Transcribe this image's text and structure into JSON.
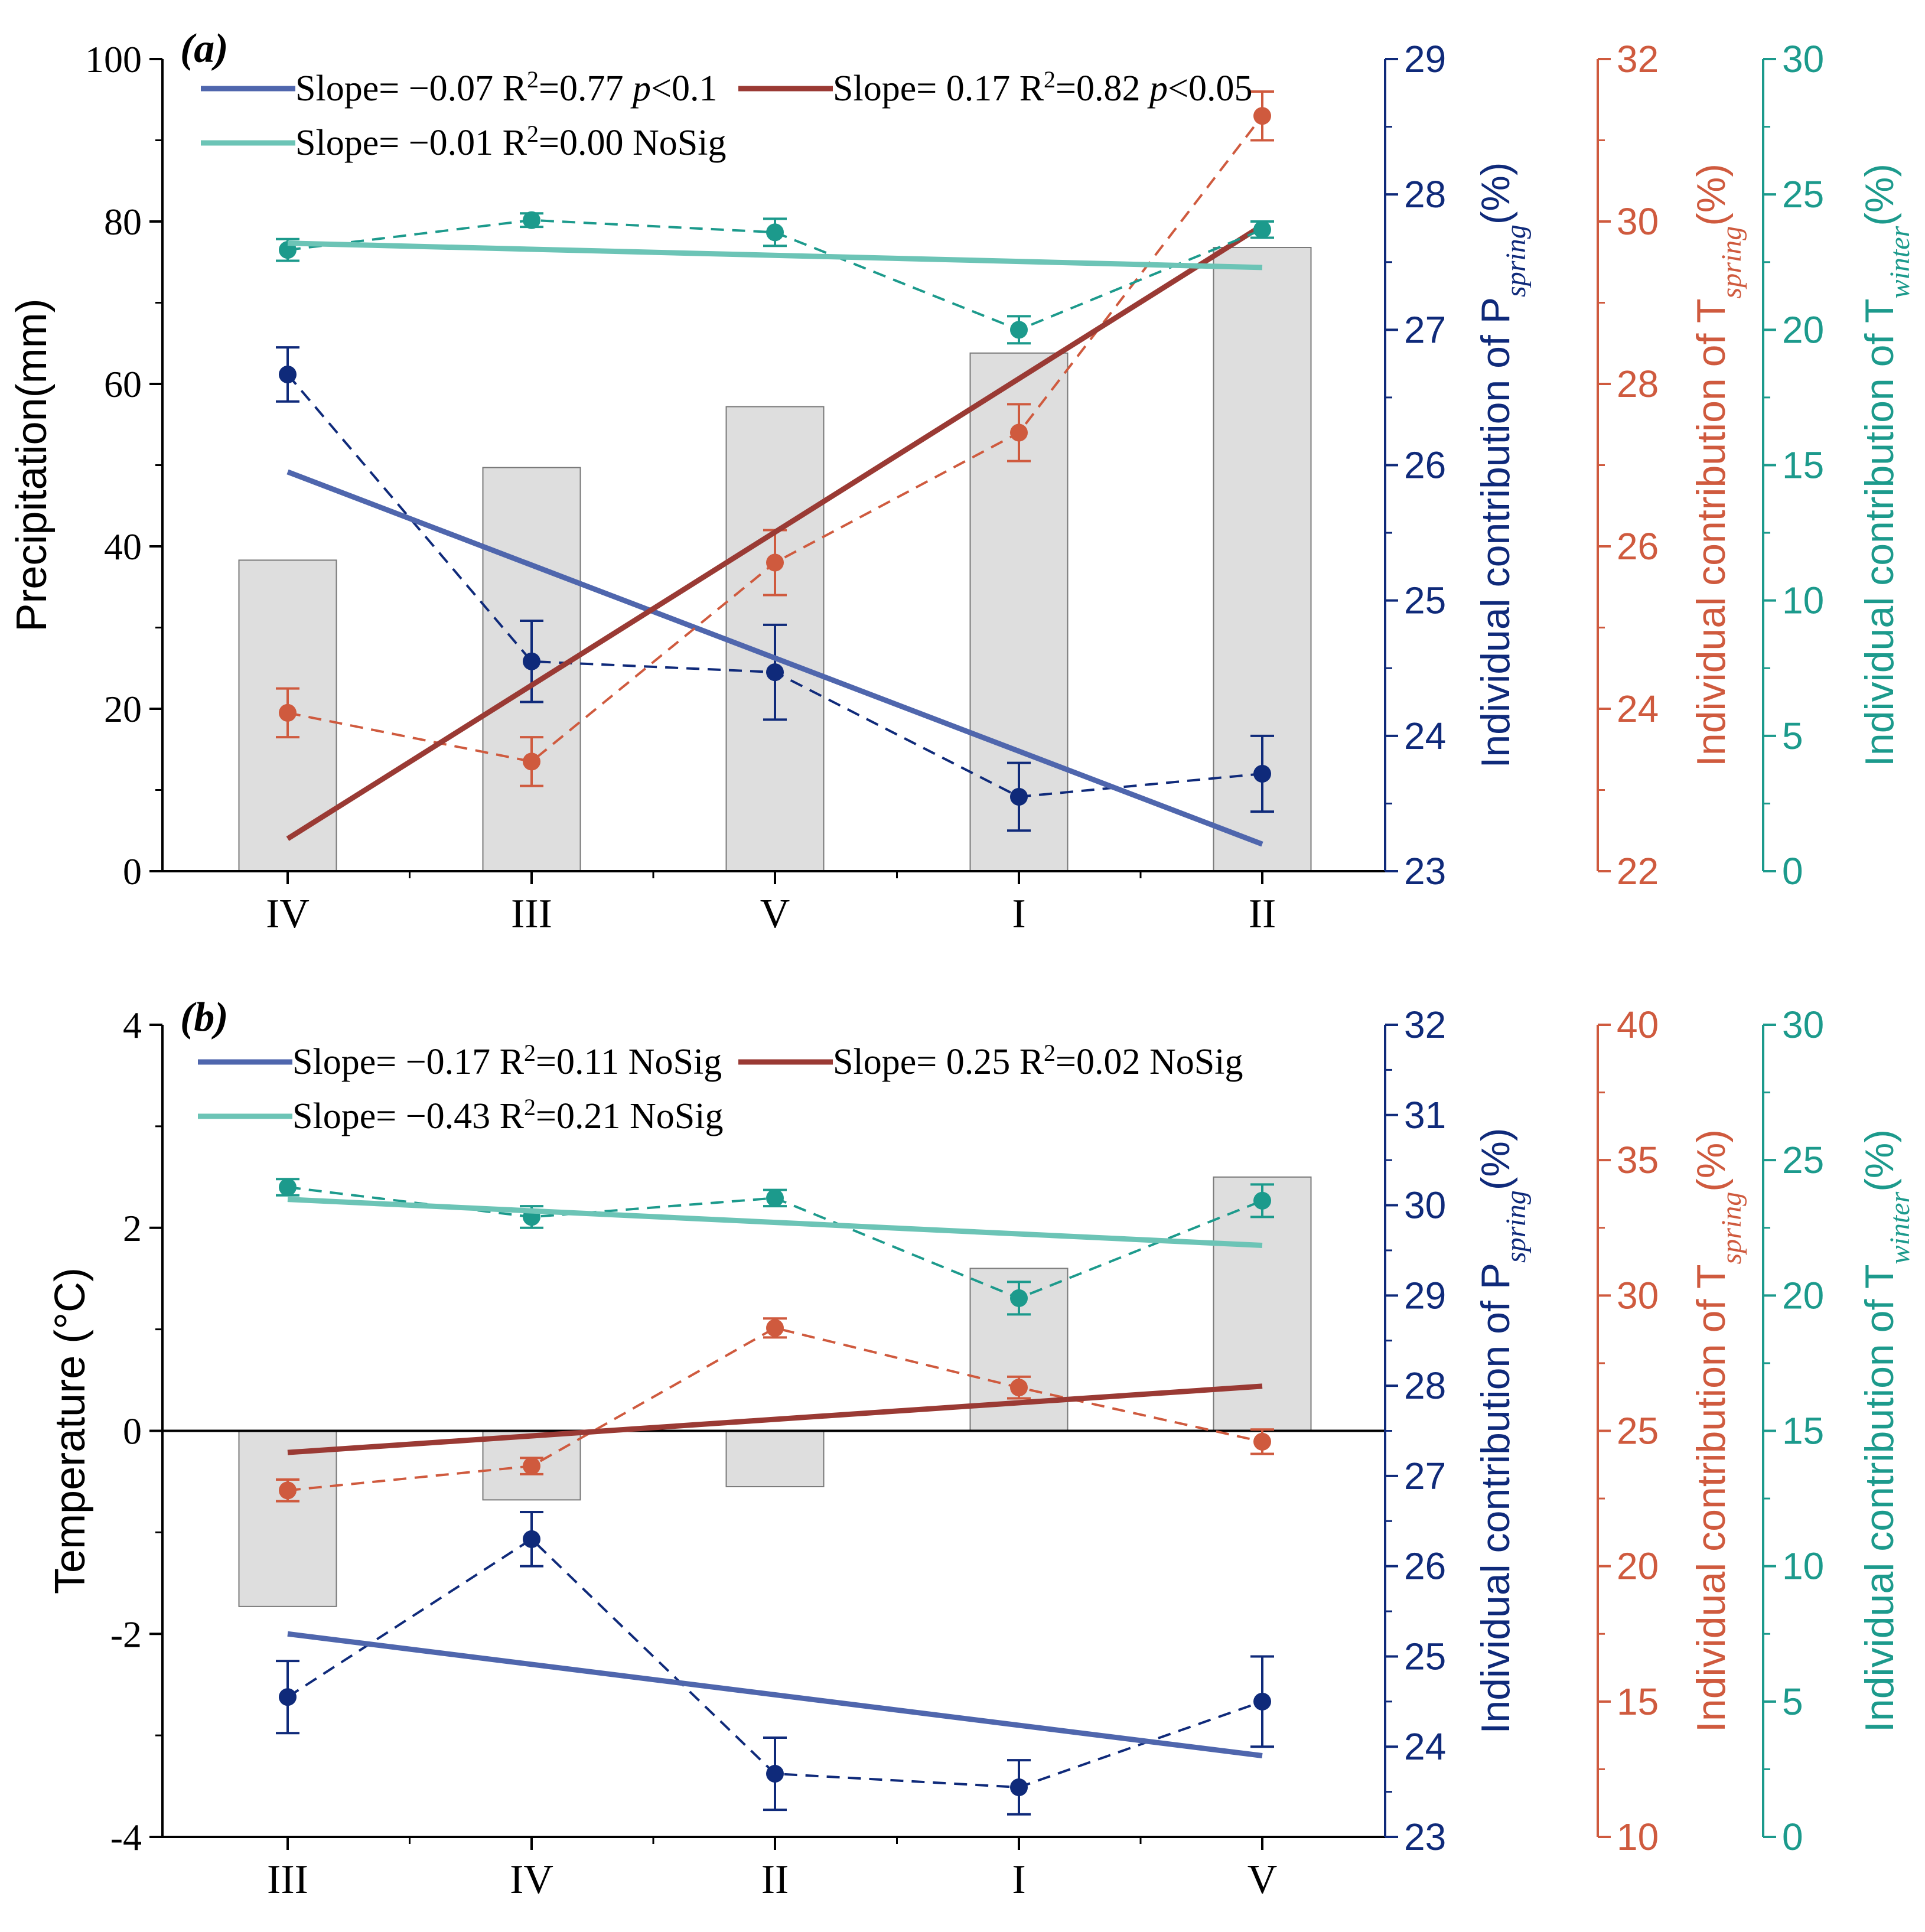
{
  "colors": {
    "blue": "#0f2a7a",
    "blue_fit": "#4f66ad",
    "red": "#cf5a3e",
    "red_fit": "#9a3a34",
    "teal": "#1c9a8c",
    "teal_fit": "#6cc4b6",
    "bar_fill": "#dedede",
    "bar_stroke": "#7a7a7a"
  },
  "chart_data": [
    {
      "id": "a",
      "type": "bar",
      "panel_label": "(a)",
      "ylabel": "Precipitation(mm)",
      "ylim": [
        0,
        100
      ],
      "yticks": [
        0,
        20,
        40,
        60,
        80,
        100
      ],
      "yticklabels": [
        "0",
        "20",
        "40",
        "60",
        "80",
        "100"
      ],
      "categories": [
        "IV",
        "III",
        "V",
        "I",
        "II"
      ],
      "bars": [
        38.3,
        49.7,
        57.2,
        63.8,
        76.8
      ],
      "zero_line": false,
      "right_axes": [
        {
          "key": "p_spring",
          "color_key": "blue",
          "label_parts": [
            "Individual contribution of P",
            "spring",
            "(%)"
          ],
          "ylim": [
            23,
            29
          ],
          "ticks": [
            23,
            24,
            25,
            26,
            27,
            28,
            29
          ],
          "ticklabels": [
            "23",
            "24",
            "25",
            "26",
            "27",
            "28",
            "29"
          ]
        },
        {
          "key": "t_spring",
          "color_key": "red",
          "label_parts": [
            "Individual contribution of T",
            "spring",
            "(%)"
          ],
          "ylim": [
            22,
            32
          ],
          "ticks": [
            22,
            24,
            26,
            28,
            30,
            32
          ],
          "ticklabels": [
            "22",
            "24",
            "26",
            "28",
            "30",
            "32"
          ]
        },
        {
          "key": "t_winter",
          "color_key": "teal",
          "label_parts": [
            "Individual contribution of T",
            "winter",
            "(%)"
          ],
          "ylim": [
            0,
            30
          ],
          "ticks": [
            0,
            5,
            10,
            15,
            20,
            25,
            30
          ],
          "ticklabels": [
            "0",
            "5",
            "10",
            "15",
            "20",
            "25",
            "30"
          ]
        }
      ],
      "series": [
        {
          "name": "P_spring",
          "axis": 0,
          "color_key": "blue",
          "fit_color_key": "blue_fit",
          "values": [
            26.67,
            24.55,
            24.47,
            23.55,
            23.72
          ],
          "errors": [
            0.2,
            0.3,
            0.35,
            0.25,
            0.28
          ],
          "fit": [
            25.95,
            23.2
          ]
        },
        {
          "name": "T_spring",
          "axis": 1,
          "color_key": "red",
          "fit_color_key": "red_fit",
          "values": [
            23.95,
            23.35,
            25.8,
            27.4,
            31.3
          ],
          "errors": [
            0.3,
            0.3,
            0.4,
            0.35,
            0.3
          ],
          "fit": [
            22.4,
            29.95
          ]
        },
        {
          "name": "T_winter",
          "axis": 2,
          "color_key": "teal",
          "fit_color_key": "teal_fit",
          "values": [
            22.95,
            24.05,
            23.6,
            20.0,
            23.7
          ],
          "errors": [
            0.4,
            0.25,
            0.5,
            0.5,
            0.3
          ],
          "fit": [
            23.2,
            22.3
          ]
        }
      ],
      "legend": [
        {
          "color_key": "blue_fit",
          "text": "Slope= −0.07 R",
          "sup": "2",
          "after": "=0.77 ",
          "p_text": "p",
          "p_after": "<0.1"
        },
        {
          "color_key": "red_fit",
          "text": "Slope= 0.17 R",
          "sup": "2",
          "after": "=0.82 ",
          "p_text": "p",
          "p_after": "<0.05"
        },
        {
          "color_key": "teal_fit",
          "text": "Slope= −0.01 R",
          "sup": "2",
          "after": "=0.00 NoSig",
          "p_text": "",
          "p_after": ""
        }
      ]
    },
    {
      "id": "b",
      "type": "bar",
      "panel_label": "(b)",
      "ylabel": "Temperature (°C)",
      "ylim": [
        -4,
        4
      ],
      "yticks": [
        -4,
        -2,
        0,
        2,
        4
      ],
      "yticklabels": [
        "-4",
        "-2",
        "0",
        "2",
        "4"
      ],
      "categories": [
        "III",
        "IV",
        "II",
        "I",
        "V"
      ],
      "bars": [
        -1.73,
        -0.68,
        -0.55,
        1.6,
        2.5
      ],
      "zero_line": true,
      "right_axes": [
        {
          "key": "p_spring",
          "color_key": "blue",
          "label_parts": [
            "Individual contribution of P",
            "spring",
            "(%)"
          ],
          "ylim": [
            23,
            32
          ],
          "ticks": [
            23,
            24,
            25,
            26,
            27,
            28,
            29,
            30,
            31,
            32
          ],
          "ticklabels": [
            "23",
            "24",
            "25",
            "26",
            "27",
            "28",
            "29",
            "30",
            "31",
            "32"
          ]
        },
        {
          "key": "t_spring",
          "color_key": "red",
          "label_parts": [
            "Individual contribution of T",
            "spring",
            "(%)"
          ],
          "ylim": [
            10,
            40
          ],
          "ticks": [
            10,
            15,
            20,
            25,
            30,
            35,
            40
          ],
          "ticklabels": [
            "10",
            "15",
            "20",
            "25",
            "30",
            "35",
            "40"
          ]
        },
        {
          "key": "t_winter",
          "color_key": "teal",
          "label_parts": [
            "Individual contribution of T",
            "winter",
            "(%)"
          ],
          "ylim": [
            0,
            30
          ],
          "ticks": [
            0,
            5,
            10,
            15,
            20,
            25,
            30
          ],
          "ticklabels": [
            "0",
            "5",
            "10",
            "15",
            "20",
            "25",
            "30"
          ]
        }
      ],
      "series": [
        {
          "name": "P_spring",
          "axis": 0,
          "color_key": "blue",
          "fit_color_key": "blue_fit",
          "values": [
            24.55,
            26.3,
            23.7,
            23.55,
            24.5
          ],
          "errors": [
            0.4,
            0.3,
            0.4,
            0.3,
            0.5
          ],
          "fit": [
            25.25,
            23.9
          ]
        },
        {
          "name": "T_spring",
          "axis": 1,
          "color_key": "red",
          "fit_color_key": "red_fit",
          "values": [
            22.8,
            23.7,
            28.8,
            26.6,
            24.6
          ],
          "errors": [
            0.4,
            0.3,
            0.35,
            0.4,
            0.45
          ],
          "fit": [
            24.2,
            26.65
          ]
        },
        {
          "name": "T_winter",
          "axis": 2,
          "color_key": "teal",
          "fit_color_key": "teal_fit",
          "values": [
            24.0,
            22.9,
            23.6,
            19.9,
            23.5
          ],
          "errors": [
            0.3,
            0.4,
            0.3,
            0.6,
            0.6
          ],
          "fit": [
            23.55,
            21.85
          ]
        }
      ],
      "legend": [
        {
          "color_key": "blue_fit",
          "text": "Slope= −0.17 R",
          "sup": "2",
          "after": "=0.11 NoSig",
          "p_text": "",
          "p_after": ""
        },
        {
          "color_key": "red_fit",
          "text": "Slope= 0.25 R",
          "sup": "2",
          "after": "=0.02 NoSig",
          "p_text": "",
          "p_after": ""
        },
        {
          "color_key": "teal_fit",
          "text": "Slope= −0.43 R",
          "sup": "2",
          "after": "=0.21 NoSig",
          "p_text": "",
          "p_after": ""
        }
      ]
    }
  ]
}
